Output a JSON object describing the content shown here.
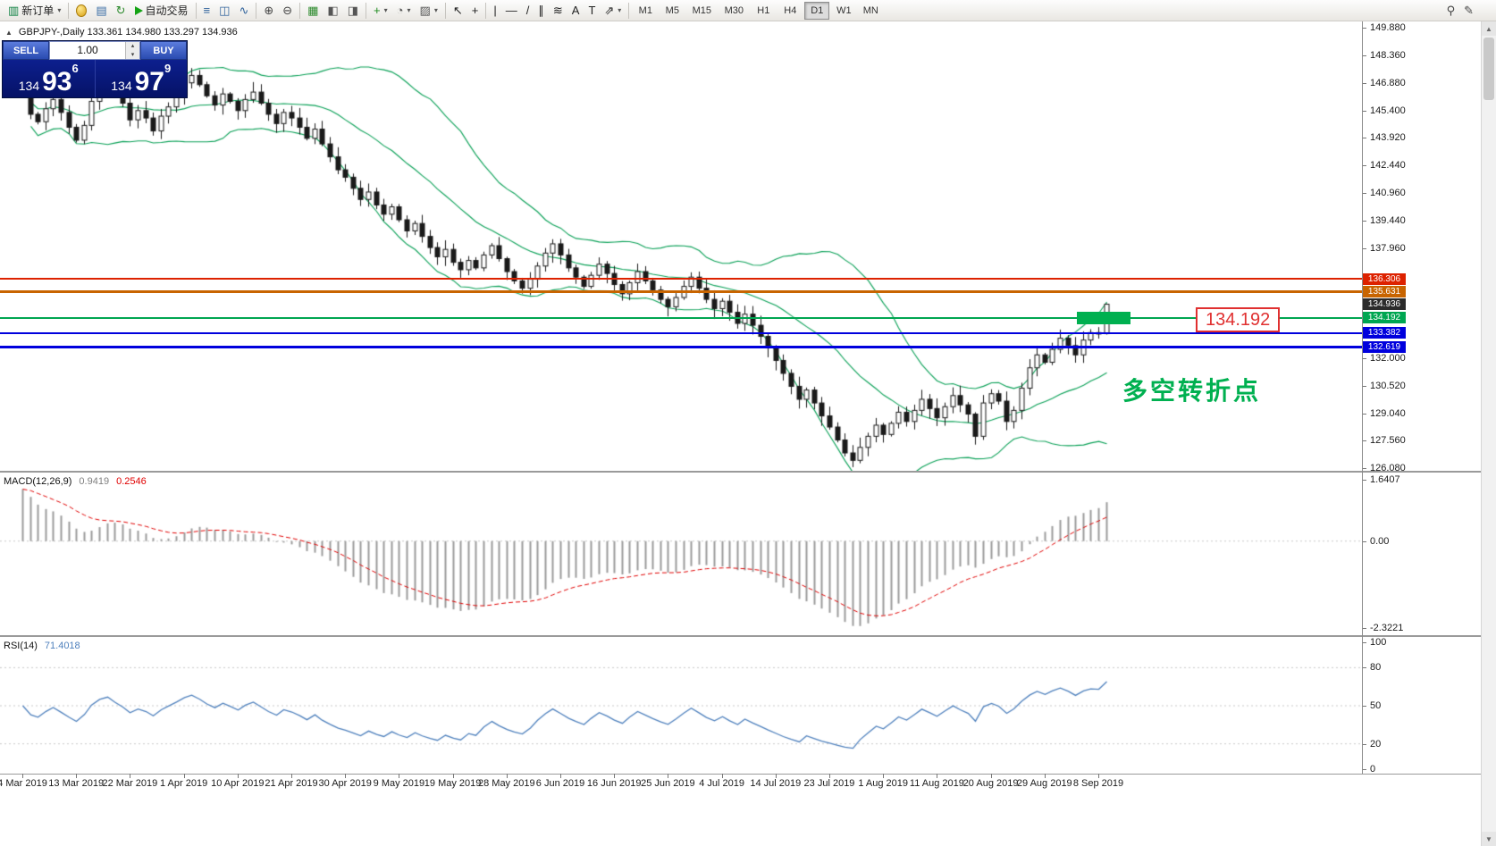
{
  "colors": {
    "bollinger": "#0aa157",
    "candle": "#1a1a1a",
    "macd_hist": "#9c9c9c",
    "macd_signal": "#e00000",
    "rsi_line": "#4f81bd",
    "zone_green": "#00b050",
    "current_badge": "#2b2b2b",
    "grid_dotted": "#c8c8c8"
  },
  "toolbar": {
    "groups": [
      [
        {
          "name": "new-order",
          "glyph": "▥",
          "color": "#0a7f3f",
          "label": "新订单",
          "caret": true
        }
      ],
      [
        {
          "name": "metaeditor",
          "type": "egg"
        },
        {
          "name": "market-watch",
          "glyph": "▤",
          "color": "#3a6ea5"
        },
        {
          "name": "refresh",
          "glyph": "↻",
          "color": "#2e8b2e"
        },
        {
          "name": "autotrading",
          "type": "play",
          "label": "自动交易"
        }
      ],
      [
        {
          "name": "bar-chart",
          "glyph": "≡",
          "color": "#31639c"
        },
        {
          "name": "candlestick-chart",
          "glyph": "◫",
          "color": "#31639c"
        },
        {
          "name": "line-chart",
          "glyph": "∿",
          "color": "#31639c"
        }
      ],
      [
        {
          "name": "zoom-in",
          "glyph": "⊕",
          "color": "#444444"
        },
        {
          "name": "zoom-out",
          "glyph": "⊖",
          "color": "#444444"
        }
      ],
      [
        {
          "name": "grid",
          "glyph": "▦",
          "color": "#2e8b2e"
        },
        {
          "name": "tile-windows",
          "glyph": "◧",
          "color": "#555555"
        },
        {
          "name": "cascade-windows",
          "glyph": "◨",
          "color": "#555555"
        }
      ],
      [
        {
          "name": "indicators",
          "glyph": "+",
          "color": "#1e8b1e",
          "caret": true
        },
        {
          "name": "periods",
          "glyph": "◔",
          "color": "#555555",
          "caret": true
        },
        {
          "name": "templates",
          "glyph": "▨",
          "color": "#555555",
          "caret": true
        }
      ],
      [
        {
          "name": "cursor",
          "glyph": "↖",
          "color": "#222222"
        },
        {
          "name": "crosshair",
          "glyph": "+",
          "color": "#222222"
        }
      ],
      [
        {
          "name": "vertical-line",
          "glyph": "|",
          "color": "#222222"
        },
        {
          "name": "horizontal-line",
          "glyph": "—",
          "color": "#222222"
        },
        {
          "name": "trendline",
          "glyph": "/",
          "color": "#222222"
        },
        {
          "name": "equidistant-channel",
          "glyph": "∥",
          "color": "#222222"
        },
        {
          "name": "fibonacci-retracement",
          "glyph": "≋",
          "color": "#222222"
        },
        {
          "name": "text",
          "glyph": "A",
          "color": "#222222"
        },
        {
          "name": "text-label",
          "glyph": "T",
          "color": "#222222"
        },
        {
          "name": "arrow-objects",
          "glyph": "⇗",
          "color": "#222222",
          "caret": true
        }
      ]
    ],
    "timeframes": {
      "active": "D1",
      "items": [
        "M1",
        "M5",
        "M15",
        "M30",
        "H1",
        "H4",
        "D1",
        "W1",
        "MN"
      ]
    },
    "right_items": [
      {
        "name": "search",
        "glyph": "⚲"
      },
      {
        "name": "edit",
        "glyph": "✎"
      }
    ]
  },
  "chart": {
    "symbol_line": {
      "collapse_arrow": "▲",
      "text": "GBPJPY-,Daily  133.361 134.980 133.297 134.936"
    },
    "trade_panel": {
      "sell_label": "SELL",
      "buy_label": "BUY",
      "volume": "1.00",
      "sell_price": {
        "big": "134",
        "huge": "93",
        "sup": "6"
      },
      "buy_price": {
        "big": "134",
        "huge": "97",
        "sup": "9"
      }
    },
    "levels": [
      {
        "price": 136.306,
        "label": "136.306",
        "color": "#dd2200",
        "width": 2,
        "current": false
      },
      {
        "price": 135.631,
        "label": "135.631",
        "color": "#c86400",
        "width": 3,
        "current": false
      },
      {
        "price": 134.936,
        "label": "134.936",
        "color": "#2b2b2b",
        "width": 0,
        "current": true
      },
      {
        "price": 134.192,
        "label": "134.192",
        "color": "#00a651",
        "width": 2,
        "current": false
      },
      {
        "price": 133.382,
        "label": "133.382",
        "color": "#0000dd",
        "width": 2,
        "current": false
      },
      {
        "price": 132.619,
        "label": "132.619",
        "color": "#0000dd",
        "width": 3,
        "current": false
      }
    ],
    "zone": {
      "price": 134.192,
      "color": "#00b050"
    },
    "callout": {
      "text": "134.192",
      "color": "#e03030"
    },
    "annotation": {
      "text": "多空转折点",
      "color": "#00b050"
    },
    "y_axis": {
      "ticks": [
        "149.880",
        "148.360",
        "146.880",
        "145.400",
        "143.920",
        "142.440",
        "140.960",
        "139.440",
        "137.960",
        "132.000",
        "130.520",
        "129.040",
        "127.560",
        "126.080"
      ]
    }
  },
  "macd": {
    "name": "MACD(12,26,9)",
    "value_main": "0.9419",
    "value_signal": "0.2546",
    "axis": [
      "1.6407",
      "0.00",
      "-2.3221"
    ],
    "max": 1.6407,
    "min": -2.3221
  },
  "rsi": {
    "name": "RSI(14)",
    "value": "71.4018",
    "axis": [
      "100",
      "80",
      "50",
      "20",
      "0"
    ],
    "levels": [
      80,
      50,
      20
    ]
  },
  "time_axis": {
    "step": 7,
    "labels": [
      "4 Mar 2019",
      "13 Mar 2019",
      "22 Mar 2019",
      "1 Apr 2019",
      "10 Apr 2019",
      "21 Apr 2019",
      "30 Apr 2019",
      "9 May 2019",
      "19 May 2019",
      "28 May 2019",
      "6 Jun 2019",
      "16 Jun 2019",
      "25 Jun 2019",
      "4 Jul 2019",
      "14 Jul 2019",
      "23 Jul 2019",
      "1 Aug 2019",
      "11 Aug 2019",
      "20 Aug 2019",
      "29 Aug 2019",
      "8 Sep 2019"
    ]
  },
  "chart_data": {
    "type": "candlestick",
    "symbol": "GBPJPY",
    "timeframe": "Daily",
    "ohlc_display": {
      "open": "133.361",
      "high": "134.980",
      "low": "133.297",
      "close": "134.936"
    },
    "y_range": {
      "min": 126.08,
      "max": 149.88
    },
    "closes": [
      146.5,
      145.2,
      144.8,
      145.5,
      146.0,
      145.3,
      144.5,
      143.8,
      144.6,
      145.9,
      146.8,
      147.2,
      146.5,
      145.8,
      144.9,
      145.4,
      145.0,
      144.3,
      145.1,
      145.6,
      146.2,
      146.9,
      147.3,
      146.8,
      146.2,
      145.7,
      146.3,
      145.9,
      145.4,
      146.0,
      146.4,
      145.8,
      145.2,
      144.7,
      145.3,
      145.0,
      144.5,
      143.9,
      144.4,
      143.6,
      142.9,
      142.2,
      141.8,
      141.2,
      140.6,
      141.0,
      140.3,
      139.8,
      140.2,
      139.5,
      138.9,
      139.3,
      138.6,
      138.0,
      137.5,
      137.9,
      137.2,
      136.8,
      137.3,
      136.9,
      137.6,
      138.1,
      137.4,
      136.7,
      136.2,
      135.8,
      136.3,
      137.0,
      137.7,
      138.2,
      137.6,
      136.9,
      136.4,
      135.9,
      136.5,
      137.1,
      136.6,
      136.0,
      135.5,
      136.1,
      136.7,
      136.2,
      135.7,
      135.2,
      134.8,
      135.3,
      135.9,
      136.4,
      135.8,
      135.2,
      134.7,
      135.1,
      134.5,
      133.9,
      134.4,
      133.8,
      133.2,
      132.6,
      131.9,
      131.2,
      130.5,
      129.8,
      130.3,
      129.6,
      128.9,
      128.3,
      127.6,
      126.9,
      126.5,
      127.2,
      127.8,
      128.4,
      127.9,
      128.5,
      129.1,
      128.6,
      129.2,
      129.8,
      129.3,
      128.8,
      129.4,
      130.0,
      129.5,
      129.0,
      127.8,
      129.6,
      130.1,
      129.7,
      128.6,
      129.2,
      130.4,
      131.5,
      132.2,
      131.8,
      132.5,
      133.1,
      132.7,
      132.2,
      133.0,
      133.4,
      133.36,
      134.94
    ],
    "last_candle": {
      "open": 133.361,
      "high": 134.98,
      "low": 133.297,
      "close": 134.936
    },
    "indicators": {
      "bollinger_period": 20,
      "bollinger_deviation": 2,
      "macd": [
        12,
        26,
        9
      ],
      "rsi_period": 14
    }
  }
}
